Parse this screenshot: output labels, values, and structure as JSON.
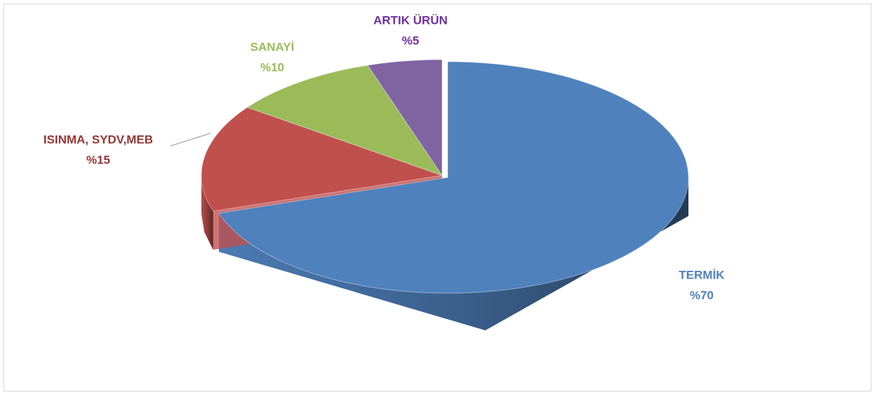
{
  "chart_data": {
    "type": "pie",
    "categories": [
      "TERMİK",
      "ISINMA, SYDV,MEB",
      "SANAYİ",
      "ARTIK ÜRÜN"
    ],
    "values": [
      70,
      15,
      10,
      5
    ],
    "value_labels": [
      "%70",
      "%15",
      "%10",
      "%5"
    ],
    "colors": [
      "#4f81bd",
      "#c0504d",
      "#9bbb59",
      "#8064a2"
    ],
    "label_colors": [
      "#4f81bd",
      "#953735",
      "#9bbb59",
      "#7030a0"
    ]
  }
}
